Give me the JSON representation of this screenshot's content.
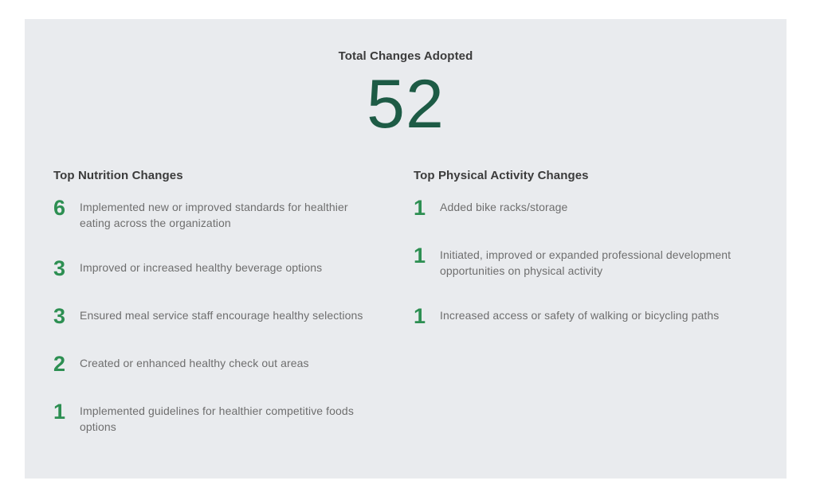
{
  "panel": {
    "bg": "#e9ebee"
  },
  "header": {
    "title": "Total Changes Adopted",
    "total": "52"
  },
  "columns": [
    {
      "heading": "Top Nutrition Changes",
      "items": [
        {
          "count": "6",
          "label": "Implemented new or improved standards for healthier eating across the organization"
        },
        {
          "count": "3",
          "label": "Improved or increased healthy beverage options"
        },
        {
          "count": "3",
          "label": "Ensured meal service staff encourage healthy selections"
        },
        {
          "count": "2",
          "label": "Created or enhanced healthy check out areas"
        },
        {
          "count": "1",
          "label": "Implemented guidelines for healthier competitive foods options"
        }
      ]
    },
    {
      "heading": "Top Physical Activity Changes",
      "items": [
        {
          "count": "1",
          "label": "Added bike racks/storage"
        },
        {
          "count": "1",
          "label": "Initiated, improved or expanded professional development opportunities on physical activity"
        },
        {
          "count": "1",
          "label": "Increased access or safety of walking or bicycling paths"
        }
      ]
    }
  ],
  "colors": {
    "panel_bg": "#e9ebee",
    "heading_text": "#3b3b3b",
    "body_text": "#6e6e6e",
    "count_green": "#2d8f52",
    "total_green": "#1d5b45"
  },
  "chart_data": {
    "type": "table",
    "title": "Total Changes Adopted",
    "total": 52,
    "series": [
      {
        "name": "Top Nutrition Changes",
        "categories": [
          "Implemented new or improved standards for healthier eating across the organization",
          "Improved or increased healthy beverage options",
          "Ensured meal service staff encourage healthy selections",
          "Created or enhanced healthy check out areas",
          "Implemented guidelines for healthier competitive foods options"
        ],
        "values": [
          6,
          3,
          3,
          2,
          1
        ]
      },
      {
        "name": "Top Physical Activity Changes",
        "categories": [
          "Added bike racks/storage",
          "Initiated, improved or expanded professional development opportunities on physical activity",
          "Increased access or safety of walking or bicycling paths"
        ],
        "values": [
          1,
          1,
          1
        ]
      }
    ]
  }
}
